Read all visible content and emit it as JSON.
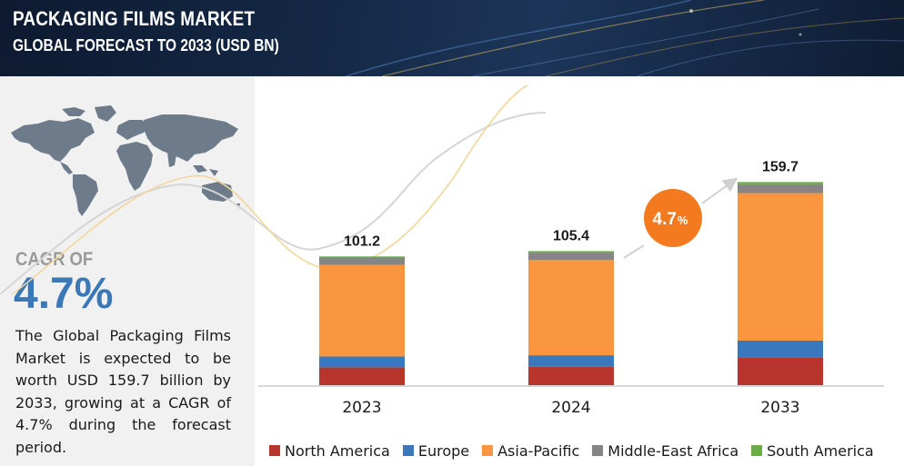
{
  "header": {
    "title": "PACKAGING FILMS MARKET",
    "subtitle": "GLOBAL FORECAST TO 2033 (USD BN)"
  },
  "sidebar": {
    "cagr_label": "CAGR OF",
    "cagr_value": "4.7%",
    "description": "The Global Packaging Films Market is expected to be worth USD 159.7 billion by 2033, growing at a CAGR of 4.7% during the forecast period."
  },
  "growth_badge": {
    "value": "4.7",
    "unit": "%"
  },
  "colors": {
    "north_america": "#b7352d",
    "europe": "#3a78bd",
    "asia_pacific": "#f9963f",
    "middle_east_africa": "#858585",
    "south_america": "#6aad45",
    "badge": "#f47a1f",
    "accent": "#3b78b8"
  },
  "chart_data": {
    "type": "bar",
    "stacked": true,
    "categories": [
      "2023",
      "2024",
      "2033"
    ],
    "totals": [
      "101.2",
      "105.4",
      "159.7"
    ],
    "series": [
      {
        "name": "North America",
        "values": [
          14.0,
          14.5,
          22.0
        ]
      },
      {
        "name": "Europe",
        "values": [
          8.5,
          9.0,
          13.0
        ]
      },
      {
        "name": "Asia-Pacific",
        "values": [
          72.0,
          74.9,
          116.0
        ]
      },
      {
        "name": "Middle-East Africa",
        "values": [
          5.5,
          5.8,
          7.0
        ]
      },
      {
        "name": "South America",
        "values": [
          1.2,
          1.2,
          1.7
        ]
      }
    ],
    "legend_position": "bottom",
    "grid": false
  }
}
